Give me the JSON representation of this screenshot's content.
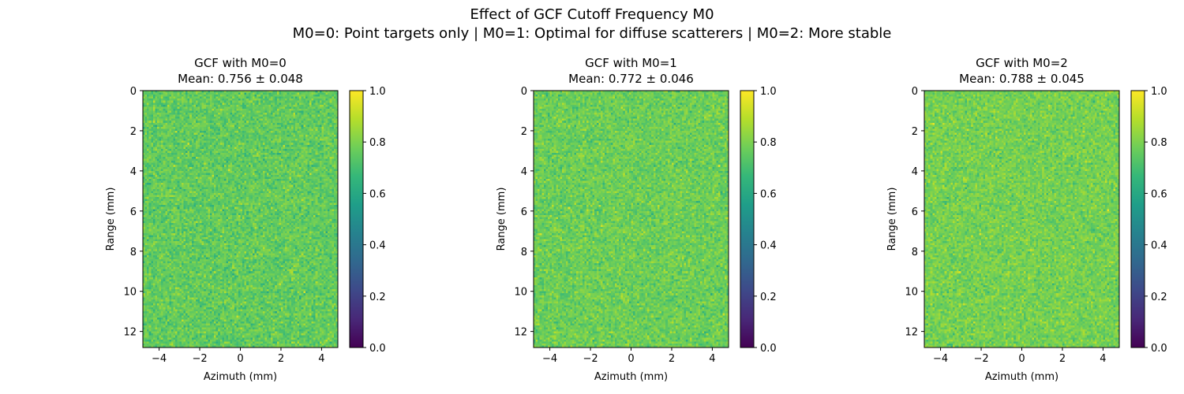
{
  "figure": {
    "suptitle_line1": "Effect of GCF Cutoff Frequency M0",
    "suptitle_line2": "M0=0: Point targets only | M0=1: Optimal for diffuse scatterers | M0=2: More stable"
  },
  "colormap": {
    "name": "viridis",
    "stops": [
      "#440154",
      "#482878",
      "#3e4989",
      "#31688e",
      "#26828e",
      "#1f9e89",
      "#35b779",
      "#6ece58",
      "#b5de2b",
      "#fde725"
    ]
  },
  "chart_data": [
    {
      "type": "heatmap",
      "title_line1": "GCF with M0=0",
      "title_line2": "Mean: 0.756 ± 0.048",
      "mean": 0.756,
      "std": 0.048,
      "xlabel": "Azimuth (mm)",
      "ylabel": "Range (mm)",
      "xlim": [
        -4.8,
        4.8
      ],
      "ylim": [
        12.8,
        0
      ],
      "xticks": [
        -4,
        -2,
        0,
        2,
        4
      ],
      "xtick_labels": [
        "−4",
        "−2",
        "0",
        "2",
        "4"
      ],
      "yticks": [
        0,
        2,
        4,
        6,
        8,
        10,
        12
      ],
      "ytick_labels": [
        "0",
        "2",
        "4",
        "6",
        "8",
        "10",
        "12"
      ],
      "colorbar": {
        "range": [
          0,
          1
        ],
        "ticks": [
          0,
          0.2,
          0.4,
          0.6,
          0.8,
          1
        ],
        "tick_labels": [
          "0.0",
          "0.2",
          "0.4",
          "0.6",
          "0.8",
          "1.0"
        ]
      }
    },
    {
      "type": "heatmap",
      "title_line1": "GCF with M0=1",
      "title_line2": "Mean: 0.772 ± 0.046",
      "mean": 0.772,
      "std": 0.046,
      "xlabel": "Azimuth (mm)",
      "ylabel": "Range (mm)",
      "xlim": [
        -4.8,
        4.8
      ],
      "ylim": [
        12.8,
        0
      ],
      "xticks": [
        -4,
        -2,
        0,
        2,
        4
      ],
      "xtick_labels": [
        "−4",
        "−2",
        "0",
        "2",
        "4"
      ],
      "yticks": [
        0,
        2,
        4,
        6,
        8,
        10,
        12
      ],
      "ytick_labels": [
        "0",
        "2",
        "4",
        "6",
        "8",
        "10",
        "12"
      ],
      "colorbar": {
        "range": [
          0,
          1
        ],
        "ticks": [
          0,
          0.2,
          0.4,
          0.6,
          0.8,
          1
        ],
        "tick_labels": [
          "0.0",
          "0.2",
          "0.4",
          "0.6",
          "0.8",
          "1.0"
        ]
      }
    },
    {
      "type": "heatmap",
      "title_line1": "GCF with M0=2",
      "title_line2": "Mean: 0.788 ± 0.045",
      "mean": 0.788,
      "std": 0.045,
      "xlabel": "Azimuth (mm)",
      "ylabel": "Range (mm)",
      "xlim": [
        -4.8,
        4.8
      ],
      "ylim": [
        12.8,
        0
      ],
      "xticks": [
        -4,
        -2,
        0,
        2,
        4
      ],
      "xtick_labels": [
        "−4",
        "−2",
        "0",
        "2",
        "4"
      ],
      "yticks": [
        0,
        2,
        4,
        6,
        8,
        10,
        12
      ],
      "ytick_labels": [
        "0",
        "2",
        "4",
        "6",
        "8",
        "10",
        "12"
      ],
      "colorbar": {
        "range": [
          0,
          1
        ],
        "ticks": [
          0,
          0.2,
          0.4,
          0.6,
          0.8,
          1
        ],
        "tick_labels": [
          "0.0",
          "0.2",
          "0.4",
          "0.6",
          "0.8",
          "1.0"
        ]
      }
    }
  ]
}
